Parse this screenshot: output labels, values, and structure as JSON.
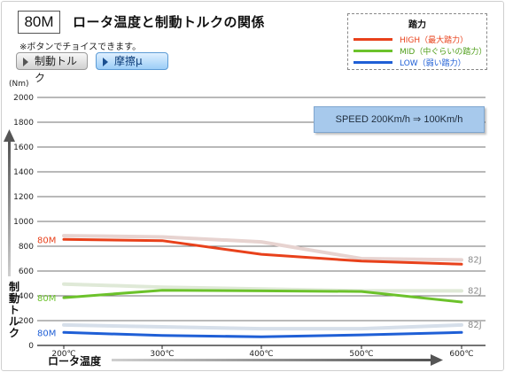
{
  "header": {
    "badge": "80M",
    "title": "ロータ温度と制動トルクの関係",
    "note": "※ボタンでチョイスできます。"
  },
  "buttons": [
    {
      "label": "制動トルク",
      "active": false
    },
    {
      "label": "摩擦μ",
      "active": true
    }
  ],
  "legend": {
    "title": "踏力",
    "items": [
      {
        "label": "HIGH（最大踏力）",
        "color": "#e8411b"
      },
      {
        "label": "MID（中ぐらいの踏力）",
        "color": "#6cc22b"
      },
      {
        "label": "LOW（弱い踏力）",
        "color": "#1f5fd6"
      }
    ]
  },
  "annotation": "SPEED  200Km/h ⇒ 100Km/h",
  "chart_data": {
    "type": "line",
    "title": "ロータ温度と制動トルクの関係",
    "xlabel": "ロータ温度",
    "ylabel": "制動トルク",
    "yunit": "(Nm)",
    "x": [
      "200℃",
      "300℃",
      "400℃",
      "500℃",
      "600℃"
    ],
    "ylim": [
      0,
      2000
    ],
    "yticks": [
      0,
      200,
      400,
      600,
      800,
      1000,
      1200,
      1400,
      1600,
      1800,
      2000
    ],
    "grid": true,
    "series": [
      {
        "group": "80M",
        "level": "HIGH",
        "color": "#e8411b",
        "values": [
          855,
          845,
          735,
          680,
          655
        ]
      },
      {
        "group": "80M",
        "level": "MID",
        "color": "#6cc22b",
        "values": [
          385,
          445,
          440,
          435,
          350
        ]
      },
      {
        "group": "80M",
        "level": "LOW",
        "color": "#1f5fd6",
        "values": [
          105,
          80,
          70,
          85,
          105
        ]
      },
      {
        "group": "82J",
        "level": "HIGH",
        "color": "#e7d3d0",
        "values": [
          885,
          875,
          835,
          700,
          690
        ]
      },
      {
        "group": "82J",
        "level": "MID",
        "color": "#dfe9d7",
        "values": [
          495,
          470,
          455,
          440,
          440
        ]
      },
      {
        "group": "82J",
        "level": "LOW",
        "color": "#d6dfea",
        "values": [
          165,
          150,
          135,
          135,
          165
        ]
      }
    ],
    "labels": {
      "left": [
        "80M",
        "80M",
        "80M"
      ],
      "right": [
        "82J",
        "82J",
        "82J"
      ]
    }
  }
}
